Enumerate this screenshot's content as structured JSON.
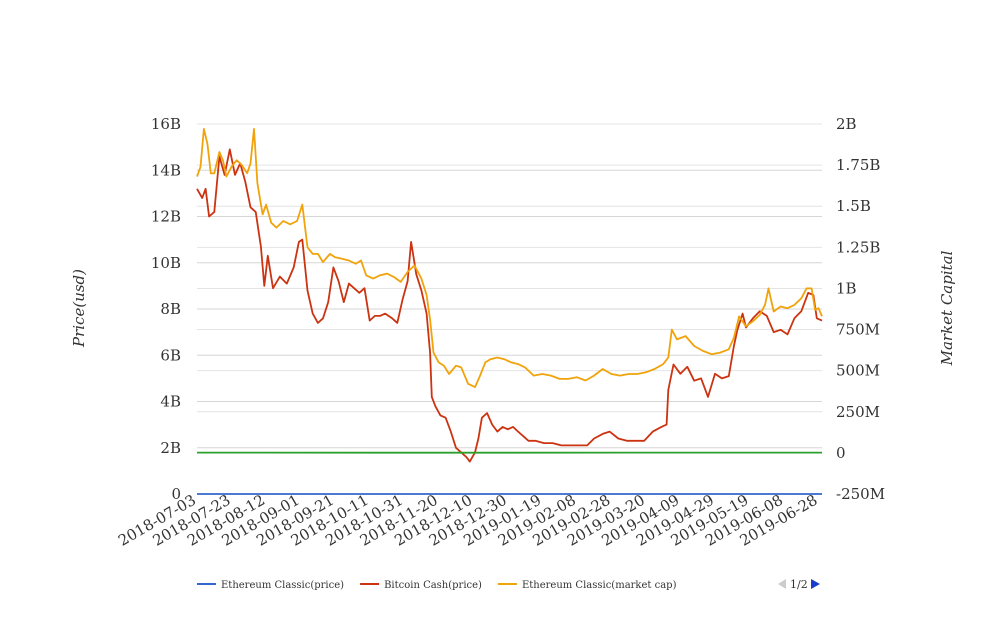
{
  "chart_data": {
    "type": "line",
    "title": "",
    "y_left_label": "Price(usd)",
    "y_right_label": "Market Capital",
    "ylim_left": [
      0,
      16000000000
    ],
    "ylim_right": [
      -250000000,
      2000000000
    ],
    "y_left_ticks": [
      "0",
      "2B",
      "4B",
      "6B",
      "8B",
      "10B",
      "12B",
      "14B",
      "16B"
    ],
    "y_right_ticks": [
      "-250M",
      "0",
      "250M",
      "500M",
      "750M",
      "1B",
      "1.25B",
      "1.5B",
      "1.75B",
      "2B"
    ],
    "x_ticks": [
      "2018-07-03",
      "2018-07-23",
      "2018-08-12",
      "2018-09-01",
      "2018-09-21",
      "2018-10-11",
      "2018-10-31",
      "2018-11-20",
      "2018-12-10",
      "2018-12-30",
      "2019-01-19",
      "2019-02-08",
      "2019-02-28",
      "2019-03-20",
      "2019-04-09",
      "2019-04-29",
      "2019-05-19",
      "2019-06-08",
      "2019-06-28"
    ],
    "x_start": "2018-07-03",
    "x_end": "2019-06-30",
    "grid": true,
    "legend_position": "bottom",
    "legend_page": "1/2",
    "series": [
      {
        "name": "Ethereum Classic(price)",
        "axis": "left",
        "color": "#3366cc",
        "points": [
          [
            "2018-07-03",
            16
          ],
          [
            "2019-06-30",
            7
          ]
        ]
      },
      {
        "name": "Bitcoin Cash(price)",
        "axis": "left",
        "color": "#cc3311",
        "points": [
          [
            "2018-07-03",
            13200000000
          ],
          [
            "2018-07-06",
            12800000000
          ],
          [
            "2018-07-08",
            13200000000
          ],
          [
            "2018-07-10",
            12000000000
          ],
          [
            "2018-07-13",
            12200000000
          ],
          [
            "2018-07-16",
            14600000000
          ],
          [
            "2018-07-19",
            13800000000
          ],
          [
            "2018-07-22",
            14900000000
          ],
          [
            "2018-07-25",
            13800000000
          ],
          [
            "2018-07-28",
            14300000000
          ],
          [
            "2018-07-31",
            13500000000
          ],
          [
            "2018-08-03",
            12400000000
          ],
          [
            "2018-08-06",
            12200000000
          ],
          [
            "2018-08-09",
            10700000000
          ],
          [
            "2018-08-11",
            9000000000
          ],
          [
            "2018-08-13",
            10300000000
          ],
          [
            "2018-08-16",
            8900000000
          ],
          [
            "2018-08-20",
            9400000000
          ],
          [
            "2018-08-24",
            9100000000
          ],
          [
            "2018-08-28",
            9800000000
          ],
          [
            "2018-08-31",
            10900000000
          ],
          [
            "2018-09-02",
            11000000000
          ],
          [
            "2018-09-05",
            8800000000
          ],
          [
            "2018-09-08",
            7800000000
          ],
          [
            "2018-09-11",
            7400000000
          ],
          [
            "2018-09-14",
            7600000000
          ],
          [
            "2018-09-17",
            8300000000
          ],
          [
            "2018-09-20",
            9800000000
          ],
          [
            "2018-09-23",
            9200000000
          ],
          [
            "2018-09-26",
            8300000000
          ],
          [
            "2018-09-29",
            9100000000
          ],
          [
            "2018-10-02",
            8900000000
          ],
          [
            "2018-10-05",
            8700000000
          ],
          [
            "2018-10-08",
            8900000000
          ],
          [
            "2018-10-11",
            7500000000
          ],
          [
            "2018-10-14",
            7700000000
          ],
          [
            "2018-10-17",
            7700000000
          ],
          [
            "2018-10-20",
            7800000000
          ],
          [
            "2018-10-24",
            7600000000
          ],
          [
            "2018-10-27",
            7400000000
          ],
          [
            "2018-10-30",
            8400000000
          ],
          [
            "2018-11-02",
            9200000000
          ],
          [
            "2018-11-04",
            10900000000
          ],
          [
            "2018-11-07",
            9500000000
          ],
          [
            "2018-11-10",
            8800000000
          ],
          [
            "2018-11-13",
            7800000000
          ],
          [
            "2018-11-15",
            6100000000
          ],
          [
            "2018-11-16",
            4200000000
          ],
          [
            "2018-11-18",
            3800000000
          ],
          [
            "2018-11-21",
            3400000000
          ],
          [
            "2018-11-24",
            3300000000
          ],
          [
            "2018-11-27",
            2700000000
          ],
          [
            "2018-11-30",
            2000000000
          ],
          [
            "2018-12-03",
            1800000000
          ],
          [
            "2018-12-06",
            1600000000
          ],
          [
            "2018-12-08",
            1400000000
          ],
          [
            "2018-12-11",
            1800000000
          ],
          [
            "2018-12-13",
            2400000000
          ],
          [
            "2018-12-15",
            3300000000
          ],
          [
            "2018-12-18",
            3500000000
          ],
          [
            "2018-12-21",
            3000000000
          ],
          [
            "2018-12-24",
            2700000000
          ],
          [
            "2018-12-27",
            2900000000
          ],
          [
            "2018-12-30",
            2800000000
          ],
          [
            "2019-01-02",
            2900000000
          ],
          [
            "2019-01-05",
            2700000000
          ],
          [
            "2019-01-08",
            2500000000
          ],
          [
            "2019-01-11",
            2300000000
          ],
          [
            "2019-01-15",
            2300000000
          ],
          [
            "2019-01-20",
            2200000000
          ],
          [
            "2019-01-25",
            2200000000
          ],
          [
            "2019-01-30",
            2100000000
          ],
          [
            "2019-02-04",
            2100000000
          ],
          [
            "2019-02-09",
            2100000000
          ],
          [
            "2019-02-14",
            2100000000
          ],
          [
            "2019-02-18",
            2400000000
          ],
          [
            "2019-02-23",
            2600000000
          ],
          [
            "2019-02-27",
            2700000000
          ],
          [
            "2019-03-04",
            2400000000
          ],
          [
            "2019-03-09",
            2300000000
          ],
          [
            "2019-03-14",
            2300000000
          ],
          [
            "2019-03-19",
            2300000000
          ],
          [
            "2019-03-24",
            2700000000
          ],
          [
            "2019-03-29",
            2900000000
          ],
          [
            "2019-04-01",
            3000000000
          ],
          [
            "2019-04-02",
            4500000000
          ],
          [
            "2019-04-05",
            5600000000
          ],
          [
            "2019-04-09",
            5200000000
          ],
          [
            "2019-04-13",
            5500000000
          ],
          [
            "2019-04-17",
            4900000000
          ],
          [
            "2019-04-21",
            5000000000
          ],
          [
            "2019-04-25",
            4200000000
          ],
          [
            "2019-04-29",
            5200000000
          ],
          [
            "2019-05-03",
            5000000000
          ],
          [
            "2019-05-07",
            5100000000
          ],
          [
            "2019-05-10",
            6400000000
          ],
          [
            "2019-05-12",
            7100000000
          ],
          [
            "2019-05-15",
            7800000000
          ],
          [
            "2019-05-17",
            7200000000
          ],
          [
            "2019-05-21",
            7600000000
          ],
          [
            "2019-05-25",
            7900000000
          ],
          [
            "2019-05-29",
            7700000000
          ],
          [
            "2019-06-02",
            7000000000
          ],
          [
            "2019-06-06",
            7100000000
          ],
          [
            "2019-06-10",
            6900000000
          ],
          [
            "2019-06-14",
            7600000000
          ],
          [
            "2019-06-18",
            7900000000
          ],
          [
            "2019-06-22",
            8700000000
          ],
          [
            "2019-06-25",
            8600000000
          ],
          [
            "2019-06-27",
            7600000000
          ],
          [
            "2019-06-30",
            7500000000
          ]
        ]
      },
      {
        "name": "Ethereum Classic(market cap)",
        "axis": "right",
        "color": "#f0a30a",
        "points": [
          [
            "2018-07-03",
            1680000000
          ],
          [
            "2018-07-05",
            1740000000
          ],
          [
            "2018-07-07",
            1970000000
          ],
          [
            "2018-07-09",
            1880000000
          ],
          [
            "2018-07-11",
            1700000000
          ],
          [
            "2018-07-13",
            1700000000
          ],
          [
            "2018-07-16",
            1830000000
          ],
          [
            "2018-07-18",
            1780000000
          ],
          [
            "2018-07-20",
            1680000000
          ],
          [
            "2018-07-23",
            1740000000
          ],
          [
            "2018-07-26",
            1780000000
          ],
          [
            "2018-07-29",
            1750000000
          ],
          [
            "2018-08-01",
            1700000000
          ],
          [
            "2018-08-03",
            1760000000
          ],
          [
            "2018-08-05",
            1970000000
          ],
          [
            "2018-08-07",
            1640000000
          ],
          [
            "2018-08-10",
            1450000000
          ],
          [
            "2018-08-12",
            1510000000
          ],
          [
            "2018-08-15",
            1400000000
          ],
          [
            "2018-08-18",
            1370000000
          ],
          [
            "2018-08-22",
            1410000000
          ],
          [
            "2018-08-26",
            1390000000
          ],
          [
            "2018-08-30",
            1410000000
          ],
          [
            "2018-09-02",
            1510000000
          ],
          [
            "2018-09-05",
            1250000000
          ],
          [
            "2018-09-08",
            1210000000
          ],
          [
            "2018-09-11",
            1210000000
          ],
          [
            "2018-09-14",
            1160000000
          ],
          [
            "2018-09-18",
            1210000000
          ],
          [
            "2018-09-21",
            1190000000
          ],
          [
            "2018-09-25",
            1180000000
          ],
          [
            "2018-09-29",
            1170000000
          ],
          [
            "2018-10-03",
            1150000000
          ],
          [
            "2018-10-06",
            1170000000
          ],
          [
            "2018-10-09",
            1080000000
          ],
          [
            "2018-10-13",
            1060000000
          ],
          [
            "2018-10-17",
            1080000000
          ],
          [
            "2018-10-21",
            1090000000
          ],
          [
            "2018-10-25",
            1070000000
          ],
          [
            "2018-10-29",
            1040000000
          ],
          [
            "2018-11-02",
            1100000000
          ],
          [
            "2018-11-06",
            1140000000
          ],
          [
            "2018-11-10",
            1060000000
          ],
          [
            "2018-11-13",
            960000000
          ],
          [
            "2018-11-15",
            810000000
          ],
          [
            "2018-11-17",
            610000000
          ],
          [
            "2018-11-20",
            550000000
          ],
          [
            "2018-11-23",
            530000000
          ],
          [
            "2018-11-26",
            480000000
          ],
          [
            "2018-11-30",
            530000000
          ],
          [
            "2018-12-03",
            520000000
          ],
          [
            "2018-12-07",
            420000000
          ],
          [
            "2018-12-11",
            400000000
          ],
          [
            "2018-12-14",
            470000000
          ],
          [
            "2018-12-17",
            550000000
          ],
          [
            "2018-12-20",
            570000000
          ],
          [
            "2018-12-24",
            580000000
          ],
          [
            "2018-12-28",
            570000000
          ],
          [
            "2019-01-01",
            550000000
          ],
          [
            "2019-01-05",
            540000000
          ],
          [
            "2019-01-09",
            520000000
          ],
          [
            "2019-01-14",
            470000000
          ],
          [
            "2019-01-19",
            480000000
          ],
          [
            "2019-01-24",
            470000000
          ],
          [
            "2019-01-29",
            450000000
          ],
          [
            "2019-02-03",
            450000000
          ],
          [
            "2019-02-08",
            460000000
          ],
          [
            "2019-02-13",
            440000000
          ],
          [
            "2019-02-18",
            470000000
          ],
          [
            "2019-02-23",
            510000000
          ],
          [
            "2019-02-28",
            480000000
          ],
          [
            "2019-03-05",
            470000000
          ],
          [
            "2019-03-10",
            480000000
          ],
          [
            "2019-03-15",
            480000000
          ],
          [
            "2019-03-20",
            490000000
          ],
          [
            "2019-03-25",
            510000000
          ],
          [
            "2019-03-30",
            540000000
          ],
          [
            "2019-04-02",
            580000000
          ],
          [
            "2019-04-04",
            750000000
          ],
          [
            "2019-04-07",
            690000000
          ],
          [
            "2019-04-12",
            710000000
          ],
          [
            "2019-04-17",
            650000000
          ],
          [
            "2019-04-22",
            620000000
          ],
          [
            "2019-04-27",
            600000000
          ],
          [
            "2019-05-02",
            610000000
          ],
          [
            "2019-05-07",
            630000000
          ],
          [
            "2019-05-10",
            700000000
          ],
          [
            "2019-05-13",
            830000000
          ],
          [
            "2019-05-17",
            770000000
          ],
          [
            "2019-05-21",
            800000000
          ],
          [
            "2019-05-25",
            840000000
          ],
          [
            "2019-05-28",
            900000000
          ],
          [
            "2019-05-30",
            1000000000
          ],
          [
            "2019-06-02",
            860000000
          ],
          [
            "2019-06-06",
            890000000
          ],
          [
            "2019-06-10",
            880000000
          ],
          [
            "2019-06-14",
            900000000
          ],
          [
            "2019-06-18",
            940000000
          ],
          [
            "2019-06-21",
            1000000000
          ],
          [
            "2019-06-24",
            1000000000
          ],
          [
            "2019-06-26",
            870000000
          ],
          [
            "2019-06-28",
            880000000
          ],
          [
            "2019-06-30",
            830000000
          ]
        ]
      },
      {
        "name": "",
        "axis": "right",
        "color": "#2ca02c",
        "points": [
          [
            "2018-07-03",
            2000000
          ],
          [
            "2018-12-10",
            1000000
          ],
          [
            "2019-06-30",
            2000000
          ]
        ]
      }
    ]
  }
}
